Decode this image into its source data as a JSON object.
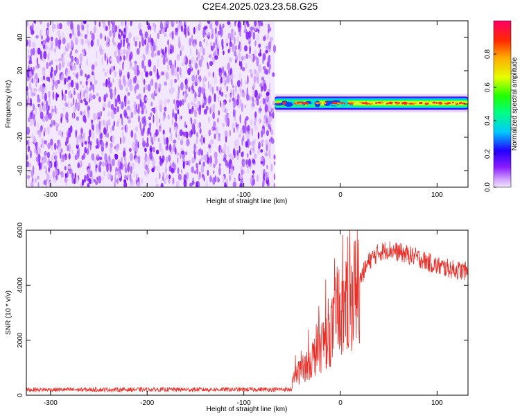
{
  "title": "C2E4.2025.023.23.58.G25",
  "colors": {
    "axis": "#000000",
    "snr_line": "#e8302a",
    "noise_dot": "#7a16ff"
  },
  "chart_data": [
    {
      "type": "heatmap",
      "xlabel": "Height of straight line (km)",
      "ylabel": "Frequency (Hz)",
      "xlim": [
        -325,
        132
      ],
      "ylim": [
        -50,
        50
      ],
      "x_ticks": [
        -300,
        -200,
        -100,
        0,
        100
      ],
      "y_ticks": [
        -40,
        -20,
        0,
        20,
        40
      ],
      "noise_region_x": [
        -325,
        -68
      ],
      "signal_band_x": [
        -68,
        132
      ],
      "signal_center_hz": 0.5,
      "signal_halfwidth_hz": 2.5,
      "colorbar": {
        "label": "Normalized spectral amplitude",
        "range": [
          0,
          1
        ],
        "ticks": [
          0.0,
          0.2,
          0.4,
          0.6,
          0.8
        ],
        "tick_labels": [
          "0.0",
          "0.2",
          "0.4",
          "0.6",
          "0.8"
        ]
      },
      "grid": false
    },
    {
      "type": "line",
      "xlabel": "Height of straight line (km)",
      "ylabel": "SNR (10 * v/v)",
      "xlim": [
        -325,
        132
      ],
      "ylim": [
        0,
        6000
      ],
      "x_ticks": [
        -300,
        -200,
        -100,
        0,
        100
      ],
      "y_ticks": [
        0,
        2000,
        4000,
        6000
      ],
      "profile": {
        "x": [
          -325,
          -50,
          -48,
          -40,
          -30,
          -20,
          -10,
          0,
          10,
          20,
          30,
          40,
          50,
          60,
          80,
          100,
          120,
          132
        ],
        "y": [
          200,
          210,
          700,
          900,
          1300,
          1800,
          2300,
          2800,
          3400,
          4200,
          4900,
          5200,
          5300,
          5200,
          5000,
          4700,
          4550,
          4500
        ]
      },
      "grid": false
    }
  ]
}
